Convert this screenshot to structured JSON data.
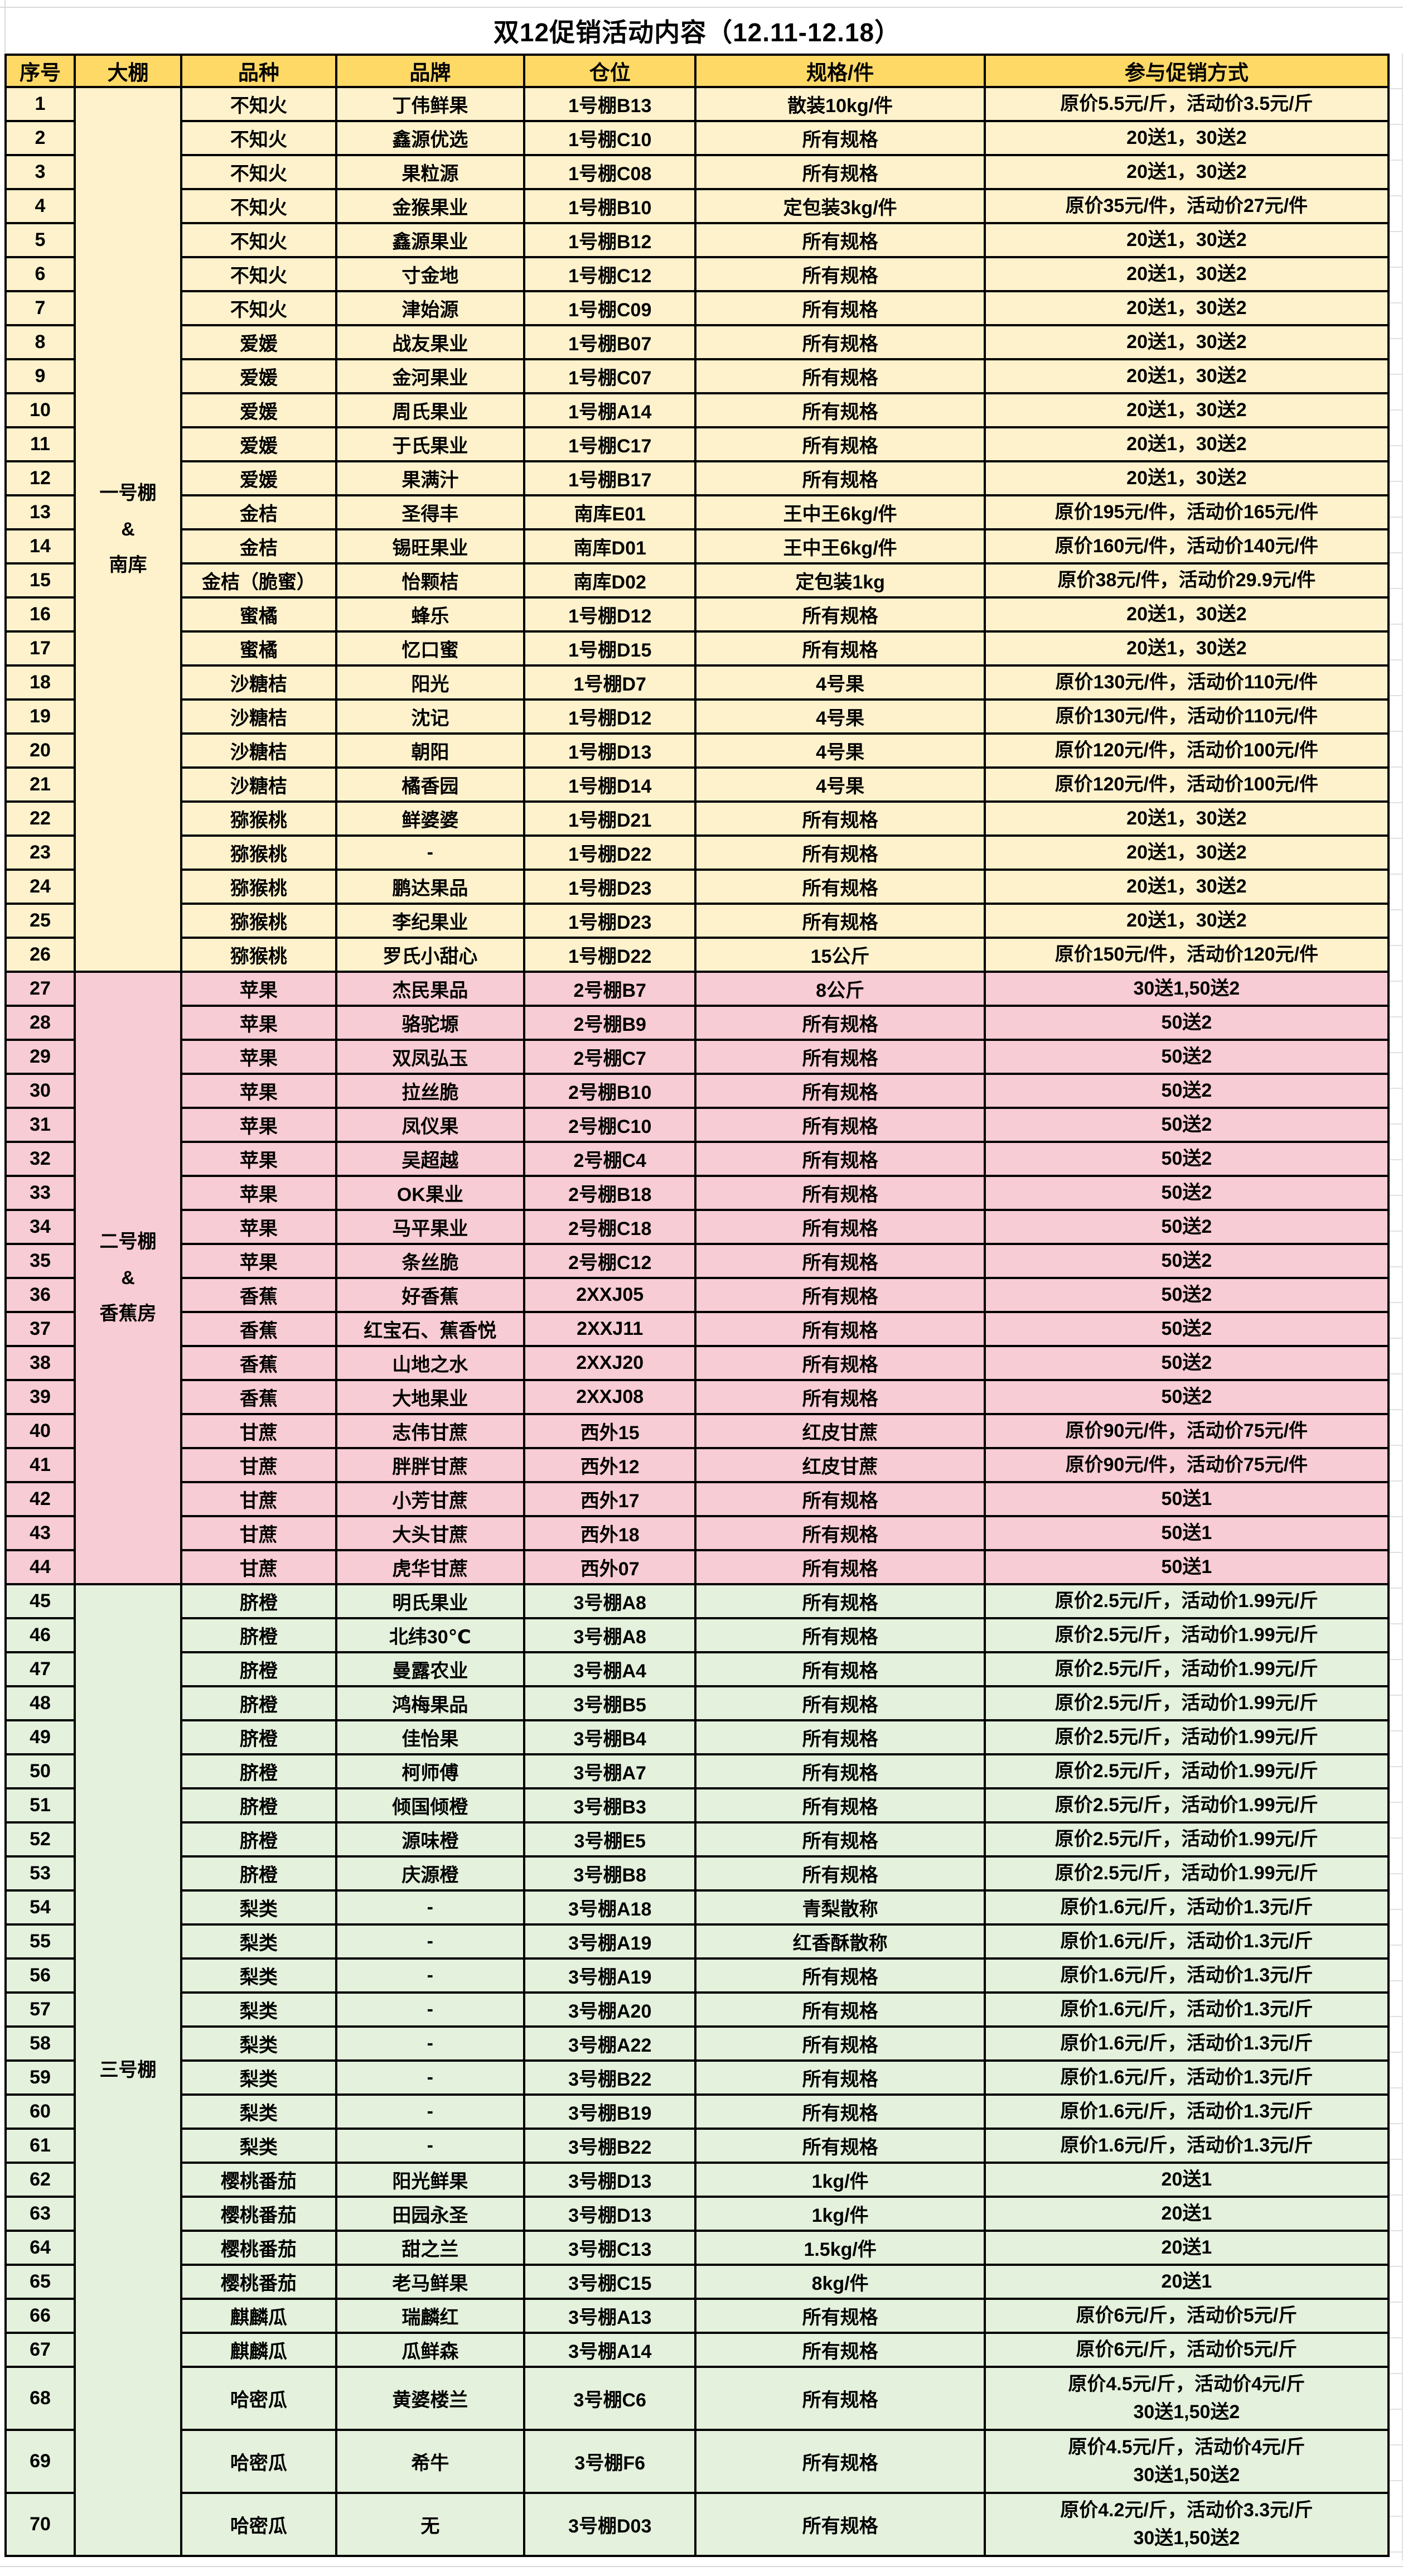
{
  "title": "双12促销活动内容（12.11-12.18）",
  "columns": [
    "序号",
    "大棚",
    "品种",
    "品牌",
    "仓位",
    "规格/件",
    "参与促销方式"
  ],
  "colors": {
    "header_bg": "#FFD966",
    "border": "#000000",
    "gridline": "#D9D9D9",
    "text": "#000000",
    "group_yellow": "#FDF2CC",
    "group_pink": "#F8CCD4",
    "group_green": "#E4F1DC"
  },
  "groups": [
    {
      "shed": "一号棚\n&\n南库",
      "bg": "group_yellow",
      "rows": [
        [
          "1",
          "不知火",
          "丁伟鲜果",
          "1号棚B13",
          "散装10kg/件",
          "原价5.5元/斤，活动价3.5元/斤"
        ],
        [
          "2",
          "不知火",
          "鑫源优选",
          "1号棚C10",
          "所有规格",
          "20送1，30送2"
        ],
        [
          "3",
          "不知火",
          "果粒源",
          "1号棚C08",
          "所有规格",
          "20送1，30送2"
        ],
        [
          "4",
          "不知火",
          "金猴果业",
          "1号棚B10",
          "定包装3kg/件",
          "原价35元/件，活动价27元/件"
        ],
        [
          "5",
          "不知火",
          "鑫源果业",
          "1号棚B12",
          "所有规格",
          "20送1，30送2"
        ],
        [
          "6",
          "不知火",
          "寸金地",
          "1号棚C12",
          "所有规格",
          "20送1，30送2"
        ],
        [
          "7",
          "不知火",
          "津始源",
          "1号棚C09",
          "所有规格",
          "20送1，30送2"
        ],
        [
          "8",
          "爱媛",
          "战友果业",
          "1号棚B07",
          "所有规格",
          "20送1，30送2"
        ],
        [
          "9",
          "爱媛",
          "金河果业",
          "1号棚C07",
          "所有规格",
          "20送1，30送2"
        ],
        [
          "10",
          "爱媛",
          "周氏果业",
          "1号棚A14",
          "所有规格",
          "20送1，30送2"
        ],
        [
          "11",
          "爱媛",
          "于氏果业",
          "1号棚C17",
          "所有规格",
          "20送1，30送2"
        ],
        [
          "12",
          "爱媛",
          "果满汁",
          "1号棚B17",
          "所有规格",
          "20送1，30送2"
        ],
        [
          "13",
          "金桔",
          "圣得丰",
          "南库E01",
          "王中王6kg/件",
          "原价195元/件，活动价165元/件"
        ],
        [
          "14",
          "金桔",
          "锡旺果业",
          "南库D01",
          "王中王6kg/件",
          "原价160元/件，活动价140元/件"
        ],
        [
          "15",
          "金桔（脆蜜）",
          "怡颗桔",
          "南库D02",
          "定包装1kg",
          "原价38元/件，活动价29.9元/件"
        ],
        [
          "16",
          "蜜橘",
          "蜂乐",
          "1号棚D12",
          "所有规格",
          "20送1，30送2"
        ],
        [
          "17",
          "蜜橘",
          "忆口蜜",
          "1号棚D15",
          "所有规格",
          "20送1，30送2"
        ],
        [
          "18",
          "沙糖桔",
          "阳光",
          "1号棚D7",
          "4号果",
          "原价130元/件，活动价110元/件"
        ],
        [
          "19",
          "沙糖桔",
          "沈记",
          "1号棚D12",
          "4号果",
          "原价130元/件，活动价110元/件"
        ],
        [
          "20",
          "沙糖桔",
          "朝阳",
          "1号棚D13",
          "4号果",
          "原价120元/件，活动价100元/件"
        ],
        [
          "21",
          "沙糖桔",
          "橘香园",
          "1号棚D14",
          "4号果",
          "原价120元/件，活动价100元/件"
        ],
        [
          "22",
          "猕猴桃",
          "鲜婆婆",
          "1号棚D21",
          "所有规格",
          "20送1，30送2"
        ],
        [
          "23",
          "猕猴桃",
          "-",
          "1号棚D22",
          "所有规格",
          "20送1，30送2"
        ],
        [
          "24",
          "猕猴桃",
          "鹏达果品",
          "1号棚D23",
          "所有规格",
          "20送1，30送2"
        ],
        [
          "25",
          "猕猴桃",
          "李纪果业",
          "1号棚D23",
          "所有规格",
          "20送1，30送2"
        ],
        [
          "26",
          "猕猴桃",
          "罗氏小甜心",
          "1号棚D22",
          "15公斤",
          "原价150元/件，活动价120元/件"
        ]
      ]
    },
    {
      "shed": "二号棚\n&\n香蕉房",
      "bg": "group_pink",
      "rows": [
        [
          "27",
          "苹果",
          "杰民果品",
          "2号棚B7",
          "8公斤",
          "30送1,50送2"
        ],
        [
          "28",
          "苹果",
          "骆驼塬",
          "2号棚B9",
          "所有规格",
          "50送2"
        ],
        [
          "29",
          "苹果",
          "双凤弘玉",
          "2号棚C7",
          "所有规格",
          "50送2"
        ],
        [
          "30",
          "苹果",
          "拉丝脆",
          "2号棚B10",
          "所有规格",
          "50送2"
        ],
        [
          "31",
          "苹果",
          "凤仪果",
          "2号棚C10",
          "所有规格",
          "50送2"
        ],
        [
          "32",
          "苹果",
          "吴超越",
          "2号棚C4",
          "所有规格",
          "50送2"
        ],
        [
          "33",
          "苹果",
          "OK果业",
          "2号棚B18",
          "所有规格",
          "50送2"
        ],
        [
          "34",
          "苹果",
          "马平果业",
          "2号棚C18",
          "所有规格",
          "50送2"
        ],
        [
          "35",
          "苹果",
          "条丝脆",
          "2号棚C12",
          "所有规格",
          "50送2"
        ],
        [
          "36",
          "香蕉",
          "好香蕉",
          "2XXJ05",
          "所有规格",
          "50送2"
        ],
        [
          "37",
          "香蕉",
          "红宝石、蕉香悦",
          "2XXJ11",
          "所有规格",
          "50送2"
        ],
        [
          "38",
          "香蕉",
          "山地之水",
          "2XXJ20",
          "所有规格",
          "50送2"
        ],
        [
          "39",
          "香蕉",
          "大地果业",
          "2XXJ08",
          "所有规格",
          "50送2"
        ],
        [
          "40",
          "甘蔗",
          "志伟甘蔗",
          "西外15",
          "红皮甘蔗",
          "原价90元/件，活动价75元/件"
        ],
        [
          "41",
          "甘蔗",
          "胖胖甘蔗",
          "西外12",
          "红皮甘蔗",
          "原价90元/件，活动价75元/件"
        ],
        [
          "42",
          "甘蔗",
          "小芳甘蔗",
          "西外17",
          "所有规格",
          "50送1"
        ],
        [
          "43",
          "甘蔗",
          "大头甘蔗",
          "西外18",
          "所有规格",
          "50送1"
        ],
        [
          "44",
          "甘蔗",
          "虎华甘蔗",
          "西外07",
          "所有规格",
          "50送1"
        ]
      ]
    },
    {
      "shed": "三号棚",
      "bg": "group_green",
      "rows": [
        [
          "45",
          "脐橙",
          "明氏果业",
          "3号棚A8",
          "所有规格",
          "原价2.5元/斤，活动价1.99元/斤"
        ],
        [
          "46",
          "脐橙",
          "北纬30℃",
          "3号棚A8",
          "所有规格",
          "原价2.5元/斤，活动价1.99元/斤"
        ],
        [
          "47",
          "脐橙",
          "曼露农业",
          "3号棚A4",
          "所有规格",
          "原价2.5元/斤，活动价1.99元/斤"
        ],
        [
          "48",
          "脐橙",
          "鸿梅果品",
          "3号棚B5",
          "所有规格",
          "原价2.5元/斤，活动价1.99元/斤"
        ],
        [
          "49",
          "脐橙",
          "佳怡果",
          "3号棚B4",
          "所有规格",
          "原价2.5元/斤，活动价1.99元/斤"
        ],
        [
          "50",
          "脐橙",
          "柯师傅",
          "3号棚A7",
          "所有规格",
          "原价2.5元/斤，活动价1.99元/斤"
        ],
        [
          "51",
          "脐橙",
          "倾国倾橙",
          "3号棚B3",
          "所有规格",
          "原价2.5元/斤，活动价1.99元/斤"
        ],
        [
          "52",
          "脐橙",
          "源味橙",
          "3号棚E5",
          "所有规格",
          "原价2.5元/斤，活动价1.99元/斤"
        ],
        [
          "53",
          "脐橙",
          "庆源橙",
          "3号棚B8",
          "所有规格",
          "原价2.5元/斤，活动价1.99元/斤"
        ],
        [
          "54",
          "梨类",
          "-",
          "3号棚A18",
          "青梨散称",
          "原价1.6元/斤，活动价1.3元/斤"
        ],
        [
          "55",
          "梨类",
          "-",
          "3号棚A19",
          "红香酥散称",
          "原价1.6元/斤，活动价1.3元/斤"
        ],
        [
          "56",
          "梨类",
          "-",
          "3号棚A19",
          "所有规格",
          "原价1.6元/斤，活动价1.3元/斤"
        ],
        [
          "57",
          "梨类",
          "-",
          "3号棚A20",
          "所有规格",
          "原价1.6元/斤，活动价1.3元/斤"
        ],
        [
          "58",
          "梨类",
          "-",
          "3号棚A22",
          "所有规格",
          "原价1.6元/斤，活动价1.3元/斤"
        ],
        [
          "59",
          "梨类",
          "-",
          "3号棚B22",
          "所有规格",
          "原价1.6元/斤，活动价1.3元/斤"
        ],
        [
          "60",
          "梨类",
          "-",
          "3号棚B19",
          "所有规格",
          "原价1.6元/斤，活动价1.3元/斤"
        ],
        [
          "61",
          "梨类",
          "-",
          "3号棚B22",
          "所有规格",
          "原价1.6元/斤，活动价1.3元/斤"
        ],
        [
          "62",
          "樱桃番茄",
          "阳光鲜果",
          "3号棚D13",
          "1kg/件",
          "20送1"
        ],
        [
          "63",
          "樱桃番茄",
          "田园永圣",
          "3号棚D13",
          "1kg/件",
          "20送1"
        ],
        [
          "64",
          "樱桃番茄",
          "甜之兰",
          "3号棚C13",
          "1.5kg/件",
          "20送1"
        ],
        [
          "65",
          "樱桃番茄",
          "老马鲜果",
          "3号棚C15",
          "8kg/件",
          "20送1"
        ],
        [
          "66",
          "麒麟瓜",
          "瑞麟红",
          "3号棚A13",
          "所有规格",
          "原价6元/斤，活动价5元/斤"
        ],
        [
          "67",
          "麒麟瓜",
          "瓜鲜森",
          "3号棚A14",
          "所有规格",
          "原价6元/斤，活动价5元/斤"
        ],
        [
          "68",
          "哈密瓜",
          "黄婆楼兰",
          "3号棚C6",
          "所有规格",
          "原价4.5元/斤，活动价4元/斤\n30送1,50送2",
          true
        ],
        [
          "69",
          "哈密瓜",
          "希牛",
          "3号棚F6",
          "所有规格",
          "原价4.5元/斤，活动价4元/斤\n30送1,50送2",
          true
        ],
        [
          "70",
          "哈密瓜",
          "无",
          "3号棚D03",
          "所有规格",
          "原价4.2元/斤，活动价3.3元/斤\n30送1,50送2",
          true
        ]
      ]
    }
  ]
}
